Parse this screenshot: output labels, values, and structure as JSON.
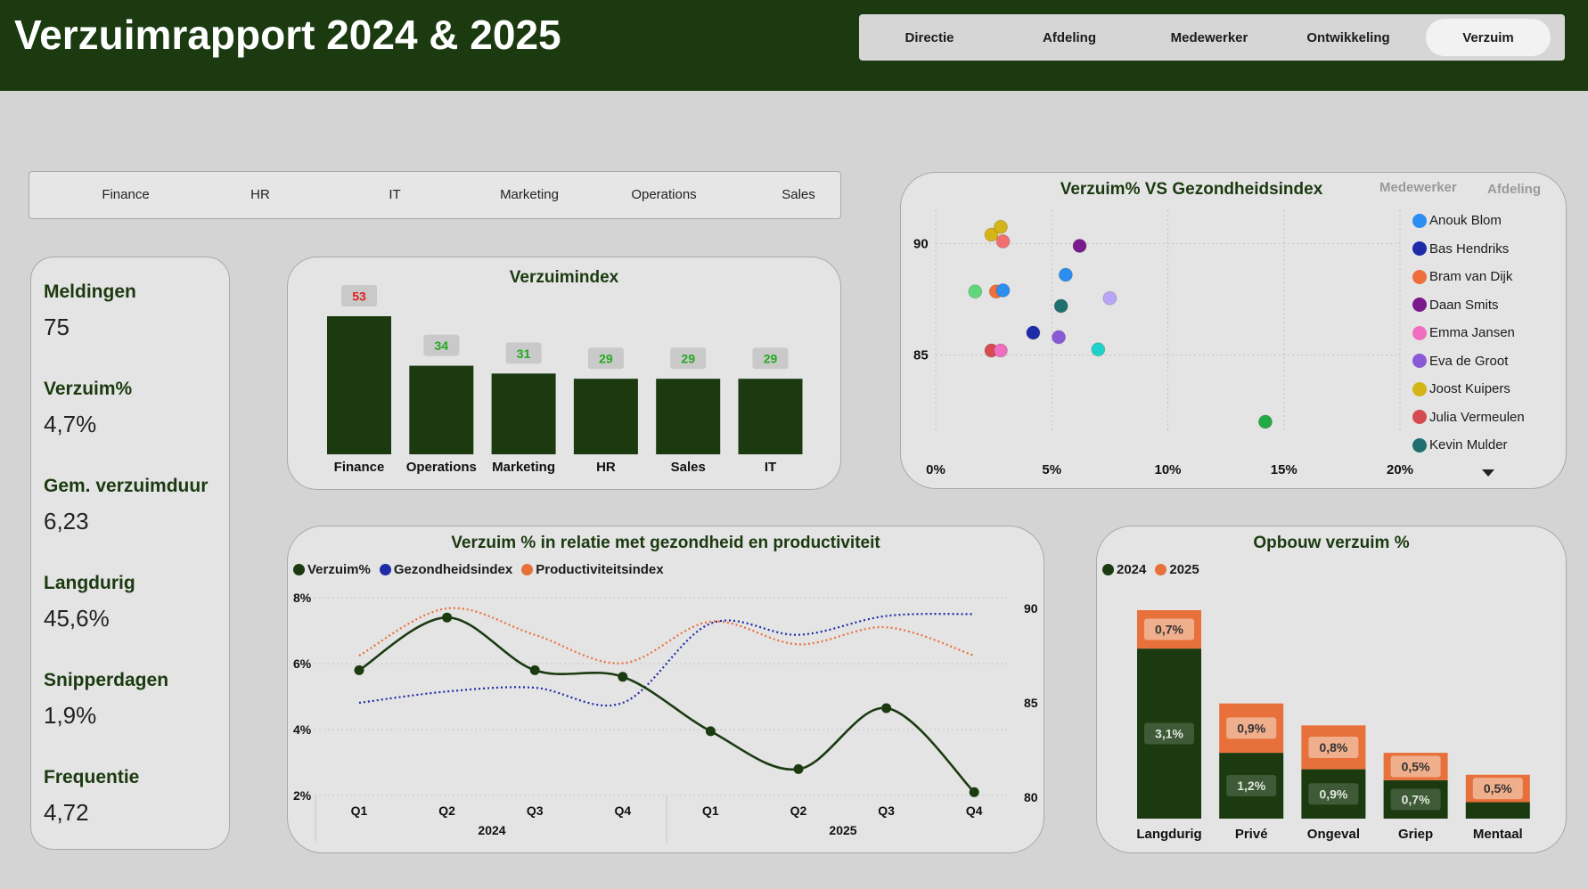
{
  "header": {
    "title": "Verzuimrapport 2024 & 2025"
  },
  "nav": {
    "items": [
      "Directie",
      "Afdeling",
      "Medewerker",
      "Ontwikkeling",
      "Verzuim"
    ],
    "active": "Verzuim"
  },
  "filters": [
    "Finance",
    "HR",
    "IT",
    "Marketing",
    "Operations",
    "Sales"
  ],
  "kpis": [
    {
      "label": "Meldingen",
      "value": "75"
    },
    {
      "label": "Verzuim%",
      "value": "4,7%"
    },
    {
      "label": "Gem. verzuimduur",
      "value": "6,23"
    },
    {
      "label": "Langdurig",
      "value": "45,6%"
    },
    {
      "label": "Snipperdagen",
      "value": "1,9%"
    },
    {
      "label": "Frequentie",
      "value": "4,72"
    }
  ],
  "colors": {
    "dark_green": "#1b3a10",
    "red_label": "#e02020",
    "green_label": "#22aa22",
    "orange": "#e8703a",
    "navy": "#1e2aa8"
  },
  "chart_data": [
    {
      "id": "verzuimindex",
      "type": "bar",
      "title": "Verzuimindex",
      "categories": [
        "Finance",
        "Operations",
        "Marketing",
        "HR",
        "Sales",
        "IT"
      ],
      "values": [
        53,
        34,
        31,
        29,
        29,
        29
      ],
      "data_labels": [
        "53",
        "34",
        "31",
        "29",
        "29",
        "29"
      ],
      "highlight": "Finance",
      "ylim": [
        0,
        53
      ]
    },
    {
      "id": "scatter",
      "type": "scatter",
      "title": "Verzuim% VS Gezondheidsindex",
      "tabs": [
        "Medewerker",
        "Afdeling"
      ],
      "x_ticks": [
        "0%",
        "5%",
        "10%",
        "15%",
        "20%"
      ],
      "xlim": [
        0,
        20
      ],
      "y_ticks": [
        "90",
        "85"
      ],
      "ylim": [
        81.5,
        91.5
      ],
      "points": [
        {
          "x": 2.4,
          "y": 90.4,
          "color": "#d4b417"
        },
        {
          "x": 2.8,
          "y": 90.75,
          "color": "#d4b417"
        },
        {
          "x": 2.9,
          "y": 90.1,
          "color": "#f07070"
        },
        {
          "x": 6.2,
          "y": 89.9,
          "color": "#7a1a8c"
        },
        {
          "x": 5.6,
          "y": 88.6,
          "color": "#2b8ef0"
        },
        {
          "x": 1.7,
          "y": 87.85,
          "color": "#62d67a"
        },
        {
          "x": 2.6,
          "y": 87.85,
          "color": "#ef6f3a"
        },
        {
          "x": 2.9,
          "y": 87.9,
          "color": "#2b8ef0"
        },
        {
          "x": 7.5,
          "y": 87.55,
          "color": "#b9a5f5"
        },
        {
          "x": 5.4,
          "y": 87.2,
          "color": "#1f6f6f"
        },
        {
          "x": 4.2,
          "y": 86.0,
          "color": "#1e2aa8"
        },
        {
          "x": 5.3,
          "y": 85.8,
          "color": "#8a5ad6"
        },
        {
          "x": 7.0,
          "y": 85.25,
          "color": "#1fd1c9"
        },
        {
          "x": 2.4,
          "y": 85.2,
          "color": "#d64a52"
        },
        {
          "x": 2.8,
          "y": 85.2,
          "color": "#f06ec0"
        },
        {
          "x": 14.2,
          "y": 82.0,
          "color": "#22aa44"
        }
      ],
      "legend": [
        {
          "name": "Anouk Blom",
          "color": "#2b8ef0"
        },
        {
          "name": "Bas Hendriks",
          "color": "#1e2aa8"
        },
        {
          "name": "Bram van Dijk",
          "color": "#ef6f3a"
        },
        {
          "name": "Daan Smits",
          "color": "#7a1a8c"
        },
        {
          "name": "Emma Jansen",
          "color": "#f06ec0"
        },
        {
          "name": "Eva de Groot",
          "color": "#8a5ad6"
        },
        {
          "name": "Joost Kuipers",
          "color": "#d4b417"
        },
        {
          "name": "Julia Vermeulen",
          "color": "#d64a52"
        },
        {
          "name": "Kevin Mulder",
          "color": "#1f6f6f"
        }
      ]
    },
    {
      "id": "lijn",
      "type": "line",
      "title": "Verzuim % in relatie met gezondheid en productiviteit",
      "quarters": [
        "Q1",
        "Q2",
        "Q3",
        "Q4",
        "Q1",
        "Q2",
        "Q3",
        "Q4"
      ],
      "years": [
        "2024",
        "2025"
      ],
      "y_left_ticks": [
        "8%",
        "6%",
        "4%",
        "2%"
      ],
      "y_left_range": [
        2,
        8
      ],
      "y_right_ticks": [
        "90",
        "85",
        "80"
      ],
      "y_right_range": [
        80,
        90
      ],
      "series": [
        {
          "name": "Verzuim%",
          "color": "#1b3a10",
          "axis": "left",
          "values": [
            5.8,
            7.4,
            5.8,
            5.6,
            3.95,
            2.8,
            4.65,
            2.1
          ]
        },
        {
          "name": "Gezondheidsindex",
          "color": "#1e2aa8",
          "axis": "right",
          "values": [
            85.0,
            85.6,
            85.8,
            85.0,
            89.2,
            88.6,
            89.6,
            89.7
          ]
        },
        {
          "name": "Productiviteitsindex",
          "color": "#e8703a",
          "axis": "right",
          "values": [
            87.5,
            90.0,
            88.6,
            87.1,
            89.3,
            88.1,
            89.0,
            87.5
          ]
        }
      ]
    },
    {
      "id": "opbouw",
      "type": "bar",
      "stacked": true,
      "title": "Opbouw verzuim %",
      "categories": [
        "Langdurig",
        "Privé",
        "Ongeval",
        "Griep",
        "Mentaal"
      ],
      "series": [
        {
          "name": "2024",
          "color": "#1b3a10",
          "values": [
            3.1,
            1.2,
            0.9,
            0.7,
            0.3
          ],
          "labels": [
            "3,1%",
            "1,2%",
            "0,9%",
            "0,7%",
            ""
          ]
        },
        {
          "name": "2025",
          "color": "#e8703a",
          "values": [
            0.7,
            0.9,
            0.8,
            0.5,
            0.5
          ],
          "labels": [
            "0,7%",
            "0,9%",
            "0,8%",
            "0,5%",
            "0,5%"
          ]
        }
      ],
      "ylim": [
        0,
        3.8
      ]
    }
  ]
}
